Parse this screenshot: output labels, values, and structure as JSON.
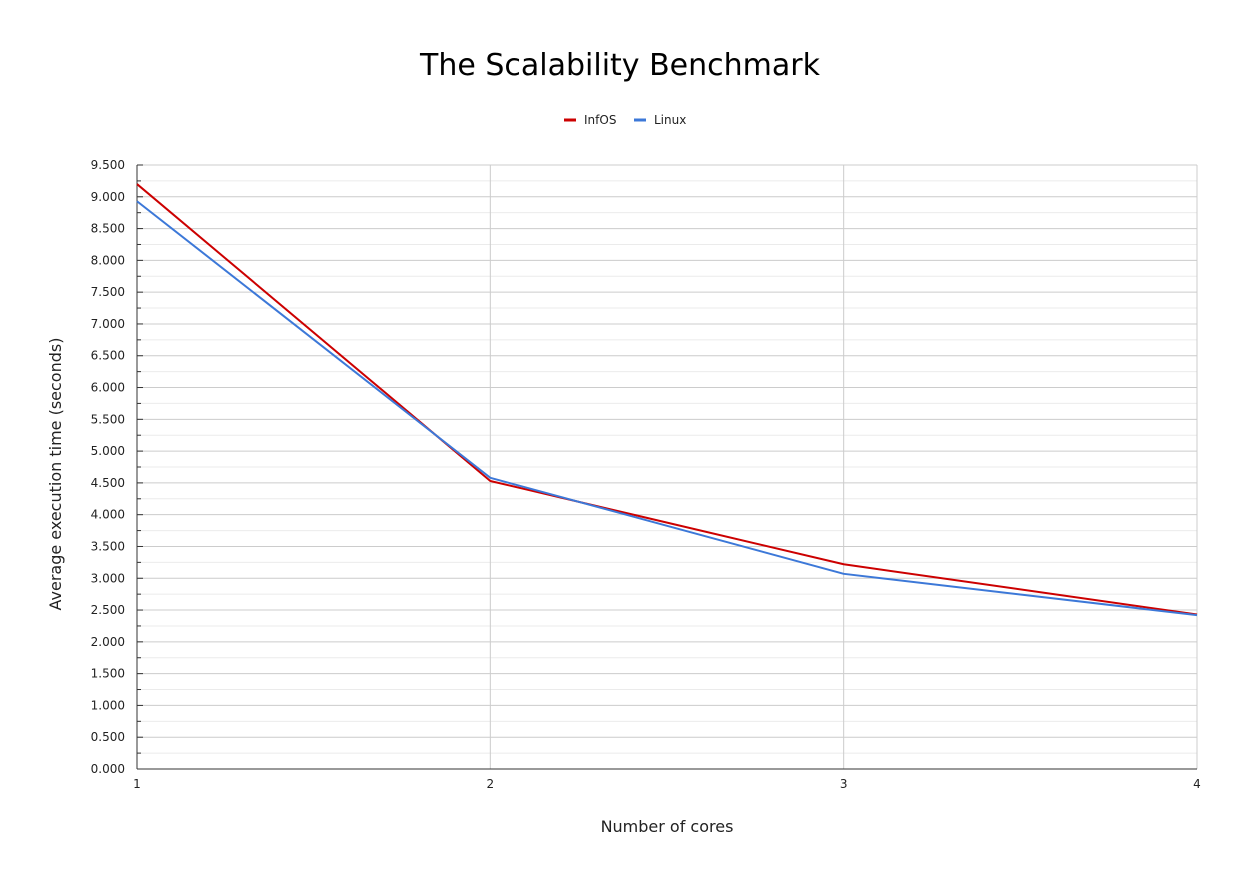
{
  "chart_data": {
    "type": "line",
    "title": "The Scalability Benchmark",
    "xlabel": "Number of cores",
    "ylabel": "Average execution time (seconds)",
    "x": [
      1,
      2,
      3,
      4
    ],
    "x_ticks": [
      "1",
      "2",
      "3",
      "4"
    ],
    "xlim": [
      1,
      4
    ],
    "ylim": [
      0,
      9.5
    ],
    "y_ticks": [
      "0.000",
      "0.500",
      "1.000",
      "1.500",
      "2.000",
      "2.500",
      "3.000",
      "3.500",
      "4.000",
      "4.500",
      "5.000",
      "5.500",
      "6.000",
      "6.500",
      "7.000",
      "7.500",
      "8.000",
      "8.500",
      "9.000",
      "9.500"
    ],
    "y_tick_step": 0.5,
    "y_minor_step": 0.25,
    "grid": true,
    "legend_position": "top-center",
    "series": [
      {
        "name": "InfOS",
        "color": "#cc0000",
        "values": [
          9.2,
          4.53,
          3.22,
          2.43
        ]
      },
      {
        "name": "Linux",
        "color": "#3c78d8",
        "values": [
          8.93,
          4.58,
          3.07,
          2.42
        ]
      }
    ]
  }
}
